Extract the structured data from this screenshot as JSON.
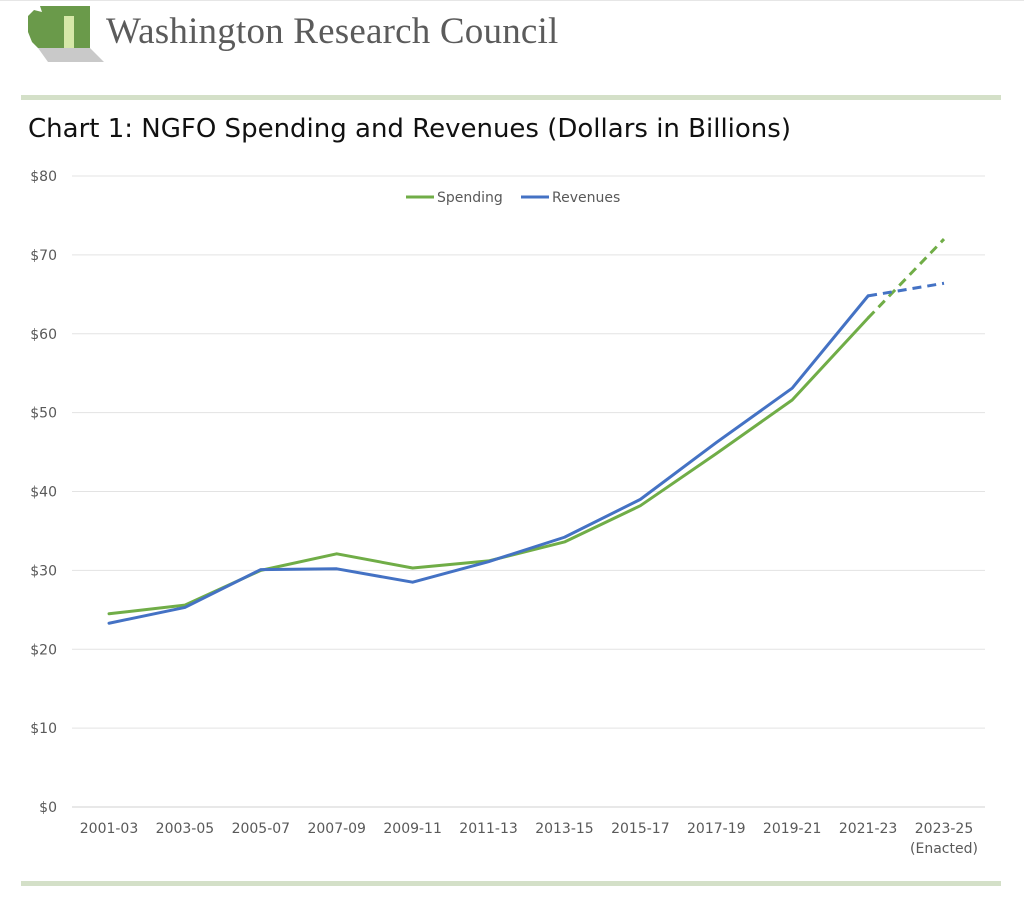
{
  "header": {
    "organization": "Washington Research Council"
  },
  "chart_data": {
    "type": "line",
    "title": "Chart 1: NGFO Spending and Revenues (Dollars in Billions)",
    "xlabel": "",
    "ylabel": "",
    "ylim": [
      0,
      80
    ],
    "y_ticks": [
      "$0",
      "$10",
      "$20",
      "$30",
      "$40",
      "$50",
      "$60",
      "$70",
      "$80"
    ],
    "categories": [
      "2001-03",
      "2003-05",
      "2005-07",
      "2007-09",
      "2009-11",
      "2011-13",
      "2013-15",
      "2015-17",
      "2017-19",
      "2019-21",
      "2021-23",
      "2023-25"
    ],
    "category_sublabels": [
      "",
      "",
      "",
      "",
      "",
      "",
      "",
      "",
      "",
      "",
      "",
      "(Enacted)"
    ],
    "grid": true,
    "legend_position": "top",
    "series": [
      {
        "name": "Spending",
        "color": "#70ad47",
        "values": [
          24.5,
          25.6,
          30.0,
          32.1,
          30.3,
          31.2,
          33.6,
          38.2,
          44.8,
          51.6,
          62.0,
          72.0
        ],
        "dashed_from_index": 10
      },
      {
        "name": "Revenues",
        "color": "#4472c4",
        "values": [
          23.3,
          25.3,
          30.1,
          30.2,
          28.5,
          31.1,
          34.2,
          39.0,
          46.2,
          53.1,
          64.8,
          66.4
        ],
        "dashed_from_index": 10
      }
    ]
  }
}
